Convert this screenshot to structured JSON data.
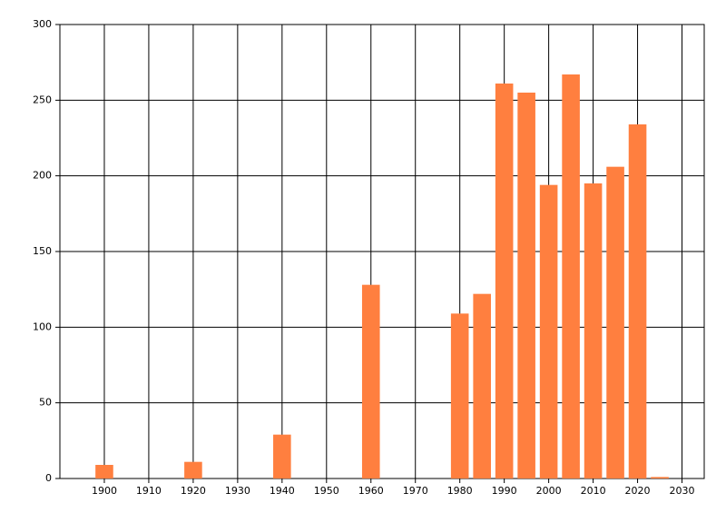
{
  "chart_data": {
    "type": "bar",
    "x": [
      1900,
      1920,
      1940,
      1960,
      1980,
      1985,
      1990,
      1995,
      2000,
      2005,
      2010,
      2015,
      2020,
      2025
    ],
    "values": [
      9,
      11,
      29,
      128,
      109,
      122,
      261,
      255,
      194,
      267,
      195,
      206,
      234,
      1
    ],
    "color": "#ff7f3f",
    "xlim": [
      1890,
      2035
    ],
    "xticks": [
      1900,
      1910,
      1920,
      1930,
      1940,
      1950,
      1960,
      1970,
      1980,
      1990,
      2000,
      2010,
      2020,
      2030
    ],
    "ylim": [
      0,
      300
    ],
    "yticks": [
      0,
      50,
      100,
      150,
      200,
      250,
      300
    ],
    "grid": true
  }
}
